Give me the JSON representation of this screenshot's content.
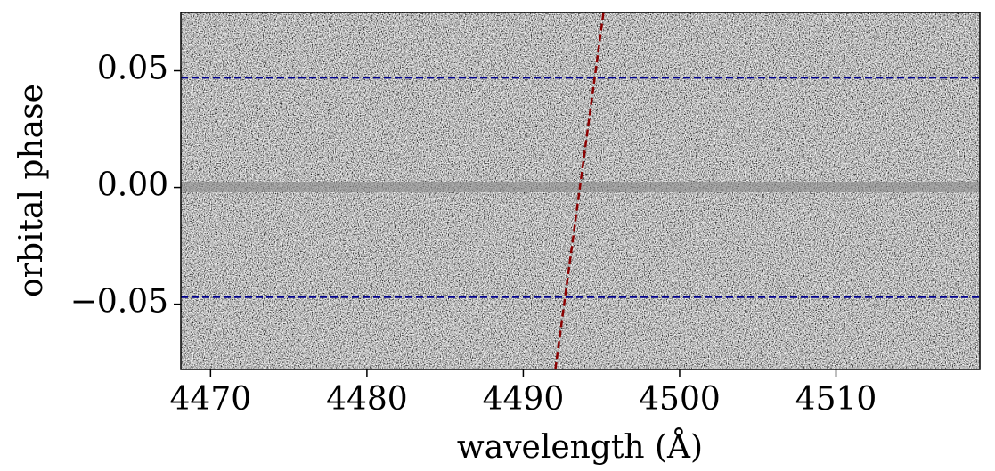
{
  "chart_data": {
    "type": "heatmap",
    "xlabel": "wavelength (Å)",
    "ylabel": "orbital phase",
    "xlim": [
      4468.1,
      4519.2
    ],
    "ylim": [
      -0.078,
      0.075
    ],
    "xticks": [
      4470,
      4480,
      4490,
      4500,
      4510
    ],
    "yticks": [
      {
        "value": -0.05,
        "label": "−0.05"
      },
      {
        "value": 0,
        "label": "0.00"
      },
      0.05
    ],
    "hlines": {
      "values": [
        0.047,
        -0.047
      ],
      "color": "#00008b"
    },
    "series": [
      {
        "color": "#8b0000",
        "x": [
          4492.05,
          4495.13
        ],
        "values": [
          -0.078,
          0.075
        ]
      }
    ]
  }
}
